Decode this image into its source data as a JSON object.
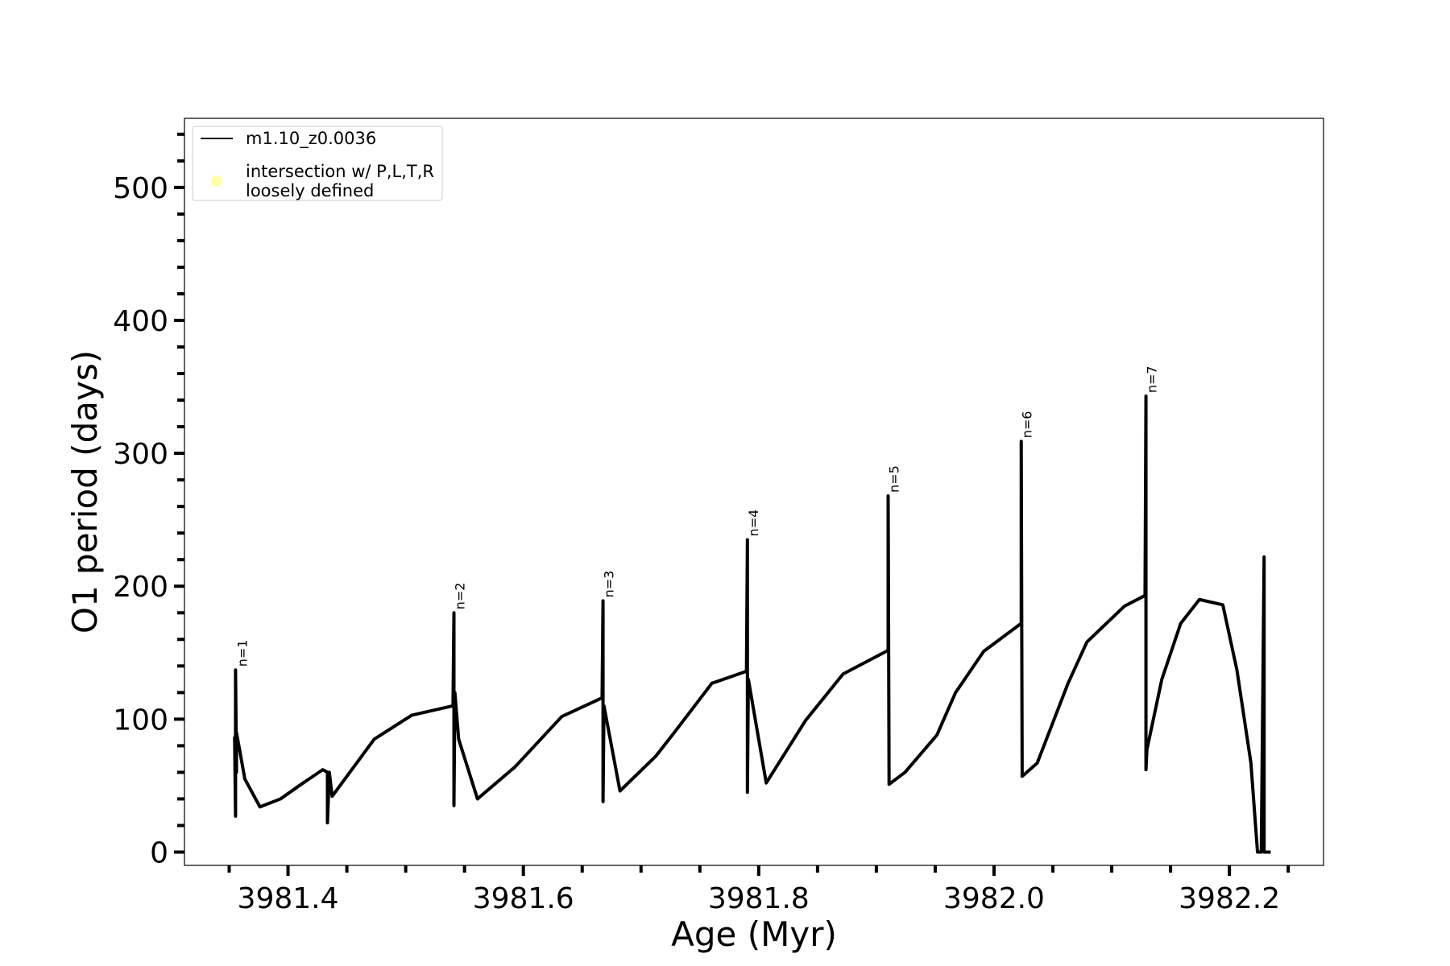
{
  "chart_data": {
    "type": "line",
    "xlabel": "Age (Myr)",
    "ylabel": "O1 period (days)",
    "xlim": [
      3981.312,
      3982.28
    ],
    "ylim": [
      -10,
      552
    ],
    "xticks": [
      {
        "value": 3981.4,
        "label": "3981.4"
      },
      {
        "value": 3981.6,
        "label": "3981.6"
      },
      {
        "value": 3981.8,
        "label": "3981.8"
      },
      {
        "value": 3982.0,
        "label": "3982.0"
      },
      {
        "value": 3982.2,
        "label": "3982.2"
      }
    ],
    "xminorticks": [
      3981.35,
      3981.45,
      3981.5,
      3981.55,
      3981.65,
      3981.7,
      3981.75,
      3981.85,
      3981.9,
      3981.95,
      3982.05,
      3982.1,
      3982.15,
      3982.25
    ],
    "yticks": [
      0,
      100,
      200,
      300,
      400,
      500
    ],
    "yminorticks": [
      20,
      40,
      60,
      80,
      120,
      140,
      160,
      180,
      220,
      240,
      260,
      280,
      320,
      340,
      360,
      380,
      420,
      440,
      460,
      480,
      520,
      540
    ],
    "grid": false,
    "legend": "upper left",
    "series": [
      {
        "name": "m1.10_z0.0036",
        "color": "#000000",
        "x": [
          3981.3546,
          3981.3554,
          3981.3554,
          3981.3562,
          3981.3562,
          3981.3633,
          3981.3761,
          3981.3936,
          3981.4096,
          3981.4295,
          3981.4335,
          3981.4335,
          3981.4351,
          3981.4375,
          3981.4733,
          3981.5052,
          3981.5402,
          3981.541,
          3981.541,
          3981.5418,
          3981.545,
          3981.561,
          3981.5928,
          3981.6327,
          3981.6669,
          3981.6677,
          3981.6677,
          3981.6685,
          3981.6821,
          3981.7124,
          3981.7283,
          3981.7602,
          3981.7896,
          3981.7904,
          3981.7904,
          3981.7912,
          3981.8064,
          3981.8398,
          3981.8717,
          3981.9084,
          3981.91,
          3981.91,
          3981.9108,
          3981.9243,
          3981.9514,
          3981.9673,
          3981.9912,
          3982.0215,
          3982.0231,
          3982.0231,
          3982.0239,
          3982.0367,
          3982.0629,
          3982.0789,
          3982.1108,
          3982.1283,
          3982.1291,
          3982.1291,
          3982.1299,
          3982.1426,
          3982.1586,
          3982.1745,
          3982.1944,
          3982.2064,
          3982.2183,
          3982.2239,
          3982.2271,
          3982.2295,
          3982.2295,
          3982.2303,
          3982.2351
        ],
        "values": [
          87,
          27,
          137,
          60,
          90,
          55,
          34,
          40,
          50,
          62,
          60,
          22,
          60,
          42,
          85,
          103,
          110,
          180,
          35,
          120,
          85,
          40,
          64,
          102,
          116,
          189,
          38,
          110,
          46,
          72,
          90,
          127,
          136,
          235,
          45,
          130,
          52,
          99,
          134,
          151,
          152,
          268,
          51,
          60,
          88,
          120,
          151,
          171,
          172,
          309,
          57,
          67,
          127,
          158,
          185,
          193,
          343,
          62,
          77,
          130,
          172,
          190,
          186,
          137,
          67,
          0,
          0,
          222,
          0,
          0,
          0
        ]
      },
      {
        "name": "intersection w/ P,L,T,R\nloosely defined",
        "color": "#ffffaa",
        "x": [],
        "values": []
      }
    ],
    "annotations": [
      {
        "text": "n=1",
        "x": 3981.3562,
        "y": 137
      },
      {
        "text": "n=2",
        "x": 3981.541,
        "y": 180
      },
      {
        "text": "n=3",
        "x": 3981.6677,
        "y": 189
      },
      {
        "text": "n=4",
        "x": 3981.7904,
        "y": 235
      },
      {
        "text": "n=5",
        "x": 3981.91,
        "y": 268
      },
      {
        "text": "n=6",
        "x": 3982.0231,
        "y": 309
      },
      {
        "text": "n=7",
        "x": 3982.1291,
        "y": 343
      }
    ]
  }
}
